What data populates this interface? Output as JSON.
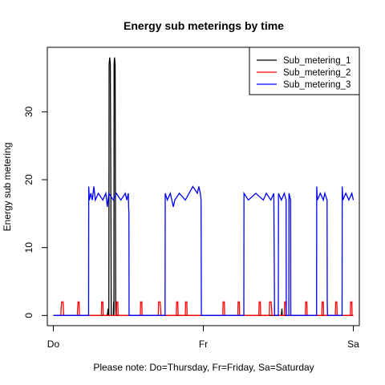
{
  "chart_data": {
    "type": "line",
    "title": "Energy sub meterings by time",
    "xlabel": "Please note: Do=Thursday, Fr=Friday, Sa=Saturday",
    "ylabel": "Energy sub metering",
    "x_unit": "days",
    "xlim": [
      -0.04,
      2.04
    ],
    "ylim": [
      -1.5,
      39.5
    ],
    "x_ticks": [
      {
        "value": 0,
        "label": "Do"
      },
      {
        "value": 1,
        "label": "Fr"
      },
      {
        "value": 2,
        "label": "Sa"
      }
    ],
    "y_ticks": [
      0,
      10,
      20,
      30
    ],
    "legend_position": "top-right",
    "grid": false,
    "series": [
      {
        "name": "Sub_metering_1",
        "color": "#000000",
        "points": [
          [
            0,
            0
          ],
          [
            0.36,
            0
          ],
          [
            0.365,
            1
          ],
          [
            0.366,
            0
          ],
          [
            0.37,
            0
          ],
          [
            0.372,
            37
          ],
          [
            0.376,
            38
          ],
          [
            0.38,
            37
          ],
          [
            0.384,
            16
          ],
          [
            0.386,
            0
          ],
          [
            0.4,
            0
          ],
          [
            0.402,
            2
          ],
          [
            0.404,
            0
          ],
          [
            0.405,
            37
          ],
          [
            0.408,
            38
          ],
          [
            0.412,
            37
          ],
          [
            0.416,
            1
          ],
          [
            0.418,
            0
          ],
          [
            1.52,
            0
          ],
          [
            1.524,
            1
          ],
          [
            1.526,
            0
          ],
          [
            2.0,
            0
          ]
        ]
      },
      {
        "name": "Sub_metering_2",
        "color": "#ff0000",
        "points": [
          [
            0,
            0
          ],
          [
            0.05,
            0
          ],
          [
            0.052,
            1
          ],
          [
            0.055,
            2
          ],
          [
            0.065,
            2
          ],
          [
            0.067,
            1
          ],
          [
            0.069,
            0
          ],
          [
            0.16,
            0
          ],
          [
            0.162,
            1
          ],
          [
            0.165,
            2
          ],
          [
            0.172,
            2
          ],
          [
            0.174,
            0
          ],
          [
            0.32,
            0
          ],
          [
            0.322,
            2
          ],
          [
            0.33,
            2
          ],
          [
            0.332,
            0
          ],
          [
            0.42,
            0
          ],
          [
            0.422,
            2
          ],
          [
            0.43,
            2
          ],
          [
            0.432,
            0
          ],
          [
            0.58,
            0
          ],
          [
            0.582,
            2
          ],
          [
            0.59,
            2
          ],
          [
            0.592,
            0
          ],
          [
            0.7,
            0
          ],
          [
            0.702,
            2
          ],
          [
            0.712,
            2
          ],
          [
            0.715,
            1
          ],
          [
            0.718,
            0
          ],
          [
            0.82,
            0
          ],
          [
            0.822,
            2
          ],
          [
            0.83,
            2
          ],
          [
            0.832,
            0
          ],
          [
            0.88,
            0
          ],
          [
            0.882,
            2
          ],
          [
            0.89,
            2
          ],
          [
            0.892,
            0
          ],
          [
            1.13,
            0
          ],
          [
            1.132,
            2
          ],
          [
            1.14,
            2
          ],
          [
            1.142,
            0
          ],
          [
            1.23,
            0
          ],
          [
            1.232,
            2
          ],
          [
            1.24,
            2
          ],
          [
            1.242,
            0
          ],
          [
            1.37,
            0
          ],
          [
            1.372,
            2
          ],
          [
            1.38,
            2
          ],
          [
            1.382,
            0
          ],
          [
            1.44,
            0
          ],
          [
            1.442,
            2
          ],
          [
            1.452,
            2
          ],
          [
            1.455,
            1
          ],
          [
            1.458,
            0
          ],
          [
            1.54,
            0
          ],
          [
            1.542,
            2
          ],
          [
            1.55,
            2
          ],
          [
            1.552,
            0
          ],
          [
            1.68,
            0
          ],
          [
            1.682,
            2
          ],
          [
            1.69,
            2
          ],
          [
            1.692,
            0
          ],
          [
            1.79,
            0
          ],
          [
            1.792,
            2
          ],
          [
            1.8,
            2
          ],
          [
            1.802,
            0
          ],
          [
            1.88,
            0
          ],
          [
            1.882,
            2
          ],
          [
            1.89,
            2
          ],
          [
            1.892,
            0
          ],
          [
            1.98,
            0
          ],
          [
            1.982,
            2
          ],
          [
            1.99,
            2
          ],
          [
            1.992,
            0
          ],
          [
            2.0,
            0
          ]
        ]
      },
      {
        "name": "Sub_metering_3",
        "color": "#0000ff",
        "points": [
          [
            0,
            0
          ],
          [
            0.235,
            0
          ],
          [
            0.236,
            19
          ],
          [
            0.24,
            17
          ],
          [
            0.25,
            18
          ],
          [
            0.26,
            17
          ],
          [
            0.27,
            19
          ],
          [
            0.28,
            17
          ],
          [
            0.3,
            18
          ],
          [
            0.33,
            17
          ],
          [
            0.35,
            18
          ],
          [
            0.36,
            16
          ],
          [
            0.37,
            18
          ],
          [
            0.4,
            17
          ],
          [
            0.42,
            18
          ],
          [
            0.45,
            17
          ],
          [
            0.48,
            18
          ],
          [
            0.49,
            17
          ],
          [
            0.5,
            18
          ],
          [
            0.502,
            16
          ],
          [
            0.504,
            15
          ],
          [
            0.505,
            0
          ],
          [
            0.745,
            0
          ],
          [
            0.746,
            18
          ],
          [
            0.76,
            17
          ],
          [
            0.78,
            18
          ],
          [
            0.79,
            17
          ],
          [
            0.8,
            16
          ],
          [
            0.81,
            17
          ],
          [
            0.84,
            18
          ],
          [
            0.88,
            17
          ],
          [
            0.93,
            19
          ],
          [
            0.96,
            18
          ],
          [
            0.97,
            19
          ],
          [
            0.98,
            18
          ],
          [
            0.985,
            17
          ],
          [
            0.987,
            0
          ],
          [
            1.27,
            0
          ],
          [
            1.271,
            18
          ],
          [
            1.3,
            17
          ],
          [
            1.35,
            18
          ],
          [
            1.4,
            17
          ],
          [
            1.42,
            18
          ],
          [
            1.45,
            17
          ],
          [
            1.47,
            18
          ],
          [
            1.475,
            0
          ],
          [
            1.5,
            0
          ],
          [
            1.501,
            18
          ],
          [
            1.52,
            17
          ],
          [
            1.54,
            18
          ],
          [
            1.552,
            17
          ],
          [
            1.553,
            0
          ],
          [
            1.57,
            0
          ],
          [
            1.571,
            18
          ],
          [
            1.582,
            17
          ],
          [
            1.583,
            0
          ],
          [
            1.755,
            0
          ],
          [
            1.756,
            19
          ],
          [
            1.76,
            17
          ],
          [
            1.78,
            18
          ],
          [
            1.8,
            17
          ],
          [
            1.81,
            18
          ],
          [
            1.825,
            17
          ],
          [
            1.826,
            2
          ],
          [
            1.828,
            0
          ],
          [
            1.925,
            0
          ],
          [
            1.926,
            19
          ],
          [
            1.93,
            17
          ],
          [
            1.95,
            18
          ],
          [
            1.97,
            17
          ],
          [
            1.99,
            18
          ],
          [
            2.0,
            17
          ]
        ]
      }
    ]
  }
}
